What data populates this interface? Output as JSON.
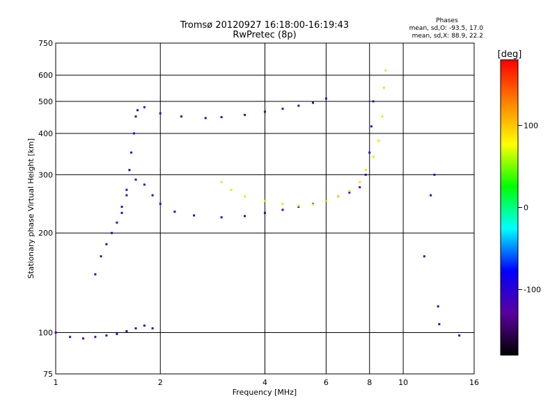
{
  "chart_data": {
    "type": "scatter",
    "title": "Tromsø 20120927 16:18:00-16:19:43",
    "subtitle": "RwPretec (8p)",
    "xlabel": "Frequency [MHz]",
    "ylabel": "Stationary phase Virtual Height [km]",
    "x_scale": "log",
    "y_scale": "log",
    "xlim": [
      1,
      16
    ],
    "ylim": [
      75,
      750
    ],
    "x_ticks": [
      "1",
      "2",
      "4",
      "6",
      "8",
      "10",
      "16"
    ],
    "x_tick_values": [
      1,
      2,
      4,
      6,
      8,
      10,
      16
    ],
    "y_ticks": [
      "75",
      "100",
      "200",
      "300",
      "400",
      "500",
      "600",
      "750"
    ],
    "y_tick_values": [
      75,
      100,
      200,
      300,
      400,
      500,
      600,
      750
    ],
    "grid": true,
    "stats": {
      "title": "Phases",
      "line_o": "mean, sd,O: -93.5, 17.0",
      "line_x": "mean, sd,X:  88.9, 22.2"
    },
    "colorbar": {
      "label": "[deg]",
      "range": [
        -180,
        180
      ],
      "ticks": [
        "100",
        "0",
        "-100"
      ],
      "tick_values": [
        100,
        0,
        -100
      ],
      "colors": [
        "#000000",
        "#5a00a0",
        "#0000ff",
        "#00ffff",
        "#00ff00",
        "#ffff00",
        "#ff8000",
        "#ff0000"
      ]
    },
    "series": [
      {
        "name": "",
        "phase_deg": -110,
        "points": [
          [
            1.0,
            100
          ],
          [
            1.1,
            97
          ],
          [
            1.2,
            96
          ],
          [
            1.3,
            97
          ],
          [
            1.4,
            98
          ],
          [
            1.5,
            99
          ],
          [
            1.6,
            101
          ],
          [
            1.7,
            103
          ],
          [
            1.8,
            105
          ],
          [
            1.9,
            103
          ]
        ]
      },
      {
        "name": "",
        "phase_deg": -105,
        "points": [
          [
            1.3,
            150
          ],
          [
            1.35,
            170
          ],
          [
            1.4,
            185
          ],
          [
            1.45,
            200
          ],
          [
            1.5,
            215
          ],
          [
            1.55,
            240
          ],
          [
            1.6,
            270
          ],
          [
            1.63,
            310
          ],
          [
            1.65,
            350
          ],
          [
            1.68,
            400
          ],
          [
            1.7,
            450
          ],
          [
            1.72,
            470
          ]
        ]
      },
      {
        "name": "",
        "phase_deg": -110,
        "points": [
          [
            1.55,
            230
          ],
          [
            1.6,
            260
          ],
          [
            1.7,
            290
          ],
          [
            1.8,
            280
          ],
          [
            1.9,
            260
          ],
          [
            2.0,
            245
          ],
          [
            2.2,
            232
          ],
          [
            2.5,
            226
          ],
          [
            3.0,
            223
          ],
          [
            3.5,
            225
          ],
          [
            4.0,
            230
          ],
          [
            4.5,
            235
          ],
          [
            5.0,
            240
          ],
          [
            5.5,
            245
          ],
          [
            6.0,
            250
          ],
          [
            6.5,
            258
          ],
          [
            7.0,
            265
          ],
          [
            7.5,
            275
          ],
          [
            7.8,
            300
          ],
          [
            8.0,
            350
          ],
          [
            8.1,
            420
          ],
          [
            8.2,
            500
          ]
        ]
      },
      {
        "name": "",
        "phase_deg": -112,
        "points": [
          [
            1.8,
            480
          ],
          [
            2.0,
            460
          ],
          [
            2.3,
            450
          ],
          [
            2.7,
            445
          ],
          [
            3.0,
            448
          ],
          [
            3.5,
            455
          ],
          [
            4.0,
            465
          ],
          [
            4.5,
            475
          ],
          [
            5.0,
            485
          ],
          [
            5.5,
            495
          ],
          [
            6.0,
            510
          ]
        ]
      },
      {
        "name": "",
        "phase_deg": 90,
        "points": [
          [
            3.0,
            285
          ],
          [
            3.2,
            270
          ],
          [
            3.5,
            258
          ],
          [
            4.0,
            250
          ],
          [
            4.5,
            245
          ],
          [
            5.0,
            242
          ],
          [
            5.5,
            244
          ],
          [
            6.0,
            250
          ],
          [
            6.5,
            258
          ],
          [
            7.0,
            268
          ],
          [
            7.5,
            285
          ],
          [
            7.8,
            310
          ],
          [
            8.2,
            340
          ],
          [
            8.5,
            380
          ],
          [
            8.7,
            450
          ],
          [
            8.8,
            550
          ],
          [
            8.9,
            620
          ]
        ]
      },
      {
        "name": "",
        "phase_deg": -100,
        "points": [
          [
            11.5,
            170
          ],
          [
            12.0,
            260
          ],
          [
            12.3,
            300
          ],
          [
            12.6,
            120
          ],
          [
            12.7,
            106
          ],
          [
            14.5,
            98
          ]
        ]
      }
    ]
  }
}
